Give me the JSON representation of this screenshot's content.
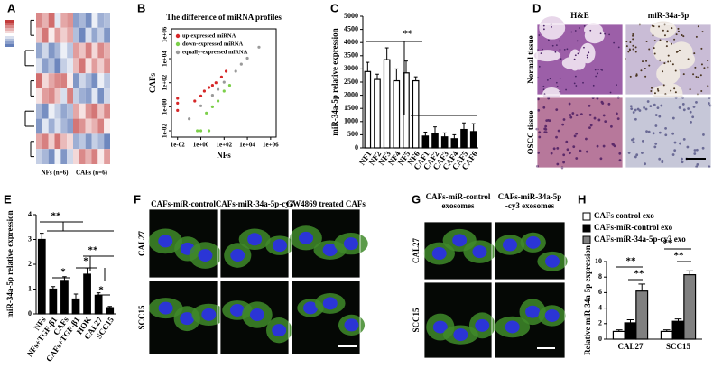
{
  "chart_data": [
    {
      "type": "heatmap",
      "panel": "A",
      "column_groups": [
        "NFs (n=6)",
        "CAFs (n=6)"
      ],
      "colorscale": [
        "#3d5fa8",
        "#ffffff",
        "#c23b3b"
      ],
      "zlim": [
        -2,
        2
      ],
      "values": [
        [
          1.2,
          0.8,
          1.5,
          -0.3,
          0.9,
          1.1,
          -1.2,
          -0.9,
          -1.4,
          -0.2,
          -1.0,
          -0.8
        ],
        [
          0.6,
          1.4,
          0.2,
          1.0,
          0.5,
          0.9,
          -0.8,
          -1.5,
          -0.4,
          -1.1,
          -0.6,
          -1.3
        ],
        [
          -1.1,
          -0.5,
          -1.3,
          -0.9,
          -0.2,
          -0.7,
          1.0,
          0.6,
          1.3,
          0.4,
          1.2,
          0.8
        ],
        [
          -0.4,
          -1.2,
          -0.8,
          -1.5,
          -0.6,
          -0.3,
          0.7,
          1.4,
          0.3,
          1.0,
          0.5,
          1.1
        ],
        [
          1.5,
          0.4,
          0.9,
          1.2,
          1.3,
          0.2,
          -1.3,
          -0.5,
          -0.9,
          -1.4,
          -0.2,
          -0.7
        ],
        [
          0.3,
          1.0,
          1.2,
          0.6,
          -0.4,
          1.3,
          -0.6,
          -1.0,
          -1.2,
          -0.3,
          -1.4,
          -0.5
        ],
        [
          -0.9,
          -1.4,
          -0.2,
          -0.6,
          -1.1,
          -0.8,
          0.9,
          0.3,
          1.1,
          1.4,
          0.6,
          1.2
        ],
        [
          -1.3,
          -0.3,
          -1.0,
          -0.4,
          -0.9,
          -1.2,
          1.4,
          1.1,
          0.5,
          0.8,
          1.3,
          0.2
        ],
        [
          0.9,
          1.3,
          0.5,
          1.4,
          0.7,
          0.4,
          -1.0,
          -0.7,
          -1.3,
          -0.6,
          -0.9,
          -1.5
        ],
        [
          -0.6,
          -0.9,
          -1.4,
          -0.2,
          -1.3,
          -0.5,
          0.4,
          1.2,
          0.8,
          1.3,
          0.2,
          1.0
        ]
      ]
    },
    {
      "type": "scatter",
      "panel": "B",
      "title": "The difference of miRNA profiles",
      "x_label": "NFs",
      "y_label": "CAFs",
      "log_x": true,
      "log_y": true,
      "legend": "top-left",
      "xlim": [
        0.003,
        3000000
      ],
      "ylim": [
        0.003,
        3000000
      ],
      "xticks": [
        {
          "value": 0.01,
          "label": "1e-02"
        },
        {
          "value": 1,
          "label": "1e+00"
        },
        {
          "value": 100,
          "label": "1e+02"
        },
        {
          "value": 10000,
          "label": "1e+04"
        },
        {
          "value": 1000000,
          "label": "1e+06"
        }
      ],
      "yticks": [
        {
          "value": 0.01,
          "label": "1e-02"
        },
        {
          "value": 1,
          "label": "1e+00"
        },
        {
          "value": 100,
          "label": "1e+02"
        },
        {
          "value": 10000,
          "label": "1e+04"
        },
        {
          "value": 1000000,
          "label": "1e+06"
        }
      ],
      "series": [
        {
          "name": "up-expressed miRNA",
          "color": "#d62728",
          "x": [
            0.01,
            0.01,
            0.01,
            0.3,
            1,
            5,
            20,
            60,
            150,
            2,
            10
          ],
          "y": [
            0.5,
            2,
            5,
            3,
            8,
            40,
            100,
            300,
            900,
            20,
            60
          ]
        },
        {
          "name": "down-expressed miRNA",
          "color": "#7ccf4a",
          "x": [
            1,
            3,
            10,
            30,
            100,
            300,
            0.5,
            5
          ],
          "y": [
            0.01,
            0.3,
            1,
            3,
            20,
            60,
            0.01,
            0.01
          ]
        },
        {
          "name": "equally-expressed miRNA",
          "color": "#9a9a9a",
          "x": [
            0.1,
            1,
            10,
            100,
            1000,
            10000,
            100000,
            3000,
            30
          ],
          "y": [
            0.1,
            1.2,
            9,
            110,
            900,
            11000,
            90000,
            3500,
            28
          ]
        }
      ]
    },
    {
      "type": "bar",
      "panel": "C",
      "y_label": "miR-34a-5p relative expression",
      "categories": [
        "NF1",
        "NF2",
        "NF3",
        "NF4",
        "NF5",
        "NF6",
        "CAF1",
        "CAF2",
        "CAF3",
        "CAF4",
        "CAF5",
        "CAF6"
      ],
      "values": [
        2900,
        2600,
        3350,
        2550,
        2850,
        2550,
        450,
        550,
        420,
        350,
        700,
        620
      ],
      "errors": [
        350,
        200,
        450,
        450,
        450,
        150,
        150,
        250,
        150,
        150,
        250,
        300
      ],
      "colors": [
        "#ffffff",
        "#ffffff",
        "#ffffff",
        "#ffffff",
        "#ffffff",
        "#ffffff",
        "#000000",
        "#000000",
        "#000000",
        "#000000",
        "#000000",
        "#000000"
      ],
      "ylim": [
        0,
        5000
      ],
      "yticks": [
        0,
        500,
        1000,
        1500,
        2000,
        2500,
        3000,
        3500,
        4000,
        4500,
        5000
      ],
      "annotations": [
        "**"
      ]
    },
    {
      "type": "bar",
      "panel": "E",
      "y_label": "miR-34a-5p relative expression",
      "categories": [
        "NFs",
        "NFs+TGF-β1",
        "CAFs",
        "CAFs+TGF-β1",
        "HOK",
        "CAL27",
        "SCC15"
      ],
      "values": [
        3.0,
        1.0,
        1.35,
        0.6,
        1.6,
        0.75,
        0.25
      ],
      "errors": [
        0.25,
        0.1,
        0.15,
        0.2,
        0.25,
        0.1,
        0.05
      ],
      "color": "#000000",
      "ylim": [
        0,
        4
      ],
      "yticks": [
        0,
        1,
        2,
        3,
        4
      ],
      "annotations": [
        "**",
        "**",
        "*",
        "*",
        "*"
      ]
    },
    {
      "type": "bar",
      "panel": "H",
      "y_label": "Relative miR-34a-5p expression",
      "legend": "top-left",
      "categories": [
        "CAL27",
        "SCC15"
      ],
      "series": [
        {
          "name": "CAFs control exo",
          "color": "#ffffff",
          "values": [
            1.0,
            1.0
          ],
          "errors": [
            0.2,
            0.2
          ]
        },
        {
          "name": "CAFs-miR-control exo",
          "color": "#000000",
          "values": [
            2.1,
            2.3
          ],
          "errors": [
            0.4,
            0.3
          ]
        },
        {
          "name": "CAFs-miR-34a-5p-cy3 exo",
          "color": "#808080",
          "values": [
            6.2,
            8.3
          ],
          "errors": [
            0.9,
            0.5
          ]
        }
      ],
      "ylim": [
        0,
        10
      ],
      "yticks": [
        0,
        2,
        4,
        6,
        8,
        10
      ],
      "annotations": [
        "**",
        "**",
        "**",
        "**"
      ]
    }
  ],
  "images": [
    {
      "panel": "D",
      "columns": [
        [
          "H&E"
        ],
        [
          "miR-34a-5p"
        ]
      ],
      "rows": [
        "Normal tissue",
        "OSCC tissue"
      ]
    },
    {
      "panel": "F",
      "columns": [
        [
          "CAFs-miR-control"
        ],
        [
          "CAFs-miR-34a-5p-cy3"
        ],
        [
          "GW4869 treated CAFs"
        ]
      ],
      "rows": [
        "CAL27",
        "SCC15"
      ]
    },
    {
      "panel": "G",
      "columns": [
        [
          "CAFs-miR-control",
          "exosomes"
        ],
        [
          "CAFs-miR-34a-5p",
          "-cy3 exosomes"
        ]
      ],
      "rows": [
        "CAL27",
        "SCC15"
      ]
    }
  ]
}
